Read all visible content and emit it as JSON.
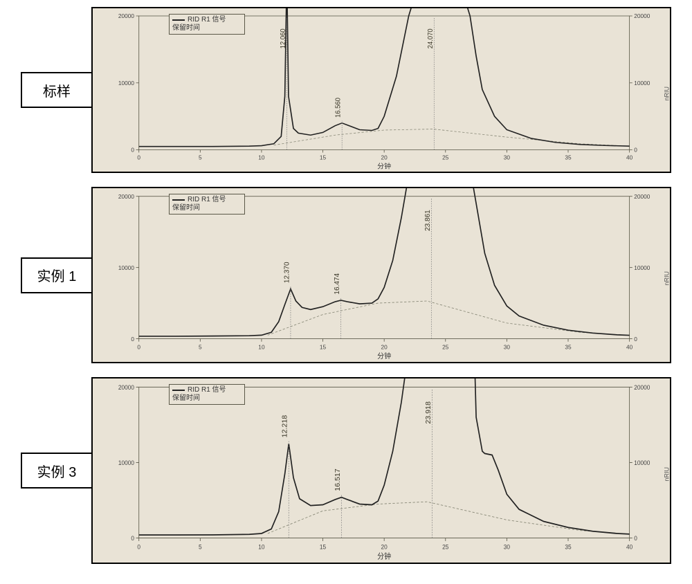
{
  "global": {
    "background_color": "#ffffff",
    "panel_bg": "#e9e3d6",
    "border_color": "#000000",
    "axis_color": "#5a5848",
    "line_color": "#222222",
    "baseline_color": "#888877",
    "xlim": [
      0,
      40
    ],
    "ylim": [
      0,
      20000
    ],
    "xticks": [
      0,
      5,
      10,
      15,
      20,
      25,
      30,
      35,
      40
    ],
    "yticks": [
      0,
      10000,
      20000
    ],
    "yticks_right": [
      0,
      10000,
      20000
    ],
    "xlabel": "分钟",
    "y_right_label": "nRIU",
    "legend_line1": "RID   R1 信号",
    "legend_line2": "保留时间",
    "tick_fontsize": 10,
    "label_fontsize": 12,
    "peak_label_fontsize": 12,
    "line_width": 2
  },
  "charts": [
    {
      "id": "chart-std",
      "panel_label": "标样",
      "peaks": [
        {
          "rt": 12.06,
          "label": "12.060"
        },
        {
          "rt": 16.56,
          "label": "16.560"
        },
        {
          "rt": 24.07,
          "label": "24.070"
        }
      ],
      "curve": [
        [
          0,
          500
        ],
        [
          3,
          500
        ],
        [
          6,
          500
        ],
        [
          9,
          550
        ],
        [
          10,
          620
        ],
        [
          11,
          900
        ],
        [
          11.6,
          2000
        ],
        [
          11.9,
          8000
        ],
        [
          12.06,
          26000
        ],
        [
          12.2,
          8000
        ],
        [
          12.6,
          3200
        ],
        [
          13,
          2500
        ],
        [
          14,
          2200
        ],
        [
          15,
          2600
        ],
        [
          16,
          3600
        ],
        [
          16.56,
          4000
        ],
        [
          17,
          3700
        ],
        [
          18,
          3000
        ],
        [
          19,
          2900
        ],
        [
          19.5,
          3200
        ],
        [
          20,
          5000
        ],
        [
          21,
          11000
        ],
        [
          22,
          20000
        ],
        [
          23,
          26000
        ],
        [
          24.07,
          27000
        ],
        [
          25,
          27000
        ],
        [
          26,
          26000
        ],
        [
          27,
          20000
        ],
        [
          27.5,
          14000
        ],
        [
          28,
          9000
        ],
        [
          29,
          5000
        ],
        [
          30,
          3000
        ],
        [
          32,
          1700
        ],
        [
          34,
          1100
        ],
        [
          36,
          800
        ],
        [
          38,
          650
        ],
        [
          40,
          550
        ]
      ],
      "baseline": [
        [
          11,
          700
        ],
        [
          16,
          2200
        ],
        [
          20,
          2950
        ],
        [
          24,
          3100
        ],
        [
          30,
          1900
        ],
        [
          36,
          900
        ],
        [
          40,
          550
        ]
      ],
      "height_class": "chart-box"
    },
    {
      "id": "chart-ex1",
      "panel_label": "实例 1",
      "peaks": [
        {
          "rt": 12.37,
          "label": "12.370"
        },
        {
          "rt": 16.474,
          "label": "16.474"
        },
        {
          "rt": 23.861,
          "label": "23.861"
        }
      ],
      "curve": [
        [
          0,
          350
        ],
        [
          3,
          350
        ],
        [
          6,
          380
        ],
        [
          9,
          420
        ],
        [
          10,
          500
        ],
        [
          10.8,
          900
        ],
        [
          11.4,
          2400
        ],
        [
          11.9,
          4800
        ],
        [
          12.37,
          7000
        ],
        [
          12.8,
          5300
        ],
        [
          13.3,
          4400
        ],
        [
          14,
          4100
        ],
        [
          15,
          4500
        ],
        [
          16,
          5200
        ],
        [
          16.47,
          5400
        ],
        [
          17,
          5200
        ],
        [
          18,
          4900
        ],
        [
          19,
          5000
        ],
        [
          19.5,
          5600
        ],
        [
          20,
          7200
        ],
        [
          20.7,
          11000
        ],
        [
          21.4,
          17000
        ],
        [
          22,
          23000
        ],
        [
          23,
          27000
        ],
        [
          23.86,
          27500
        ],
        [
          25,
          27500
        ],
        [
          26,
          27000
        ],
        [
          27,
          24000
        ],
        [
          27.6,
          18000
        ],
        [
          28.2,
          12000
        ],
        [
          29,
          7500
        ],
        [
          30,
          4600
        ],
        [
          31,
          3200
        ],
        [
          33,
          1900
        ],
        [
          35,
          1200
        ],
        [
          37,
          800
        ],
        [
          39,
          550
        ],
        [
          40,
          480
        ]
      ],
      "baseline": [
        [
          10.5,
          500
        ],
        [
          15,
          3400
        ],
        [
          19.5,
          5000
        ],
        [
          23.5,
          5300
        ],
        [
          30,
          2200
        ],
        [
          36,
          900
        ],
        [
          40,
          480
        ]
      ],
      "height_class": "chart-box chart-box-2nd"
    },
    {
      "id": "chart-ex3",
      "panel_label": "实例 3",
      "peaks": [
        {
          "rt": 12.218,
          "label": "12.218"
        },
        {
          "rt": 16.517,
          "label": "16.517"
        },
        {
          "rt": 23.918,
          "label": "23.918"
        }
      ],
      "curve": [
        [
          0,
          400
        ],
        [
          3,
          400
        ],
        [
          6,
          420
        ],
        [
          9,
          480
        ],
        [
          10,
          600
        ],
        [
          10.8,
          1200
        ],
        [
          11.4,
          3500
        ],
        [
          11.9,
          8500
        ],
        [
          12.22,
          12500
        ],
        [
          12.6,
          8000
        ],
        [
          13.1,
          5200
        ],
        [
          14,
          4300
        ],
        [
          15,
          4400
        ],
        [
          16,
          5100
        ],
        [
          16.52,
          5400
        ],
        [
          17,
          5100
        ],
        [
          18,
          4500
        ],
        [
          19,
          4400
        ],
        [
          19.5,
          4900
        ],
        [
          20,
          7000
        ],
        [
          20.7,
          11500
        ],
        [
          21.4,
          18000
        ],
        [
          22,
          25000
        ],
        [
          23,
          27000
        ],
        [
          23.92,
          27500
        ],
        [
          25,
          27500
        ],
        [
          26,
          27000
        ],
        [
          27,
          25500
        ],
        [
          27.4,
          22000
        ],
        [
          27.5,
          16000
        ],
        [
          28,
          11500
        ],
        [
          28.2,
          11200
        ],
        [
          28.8,
          11000
        ],
        [
          29.3,
          9000
        ],
        [
          30,
          5800
        ],
        [
          31,
          3800
        ],
        [
          33,
          2200
        ],
        [
          35,
          1400
        ],
        [
          37,
          900
        ],
        [
          39,
          600
        ],
        [
          40,
          520
        ]
      ],
      "baseline": [
        [
          10.5,
          600
        ],
        [
          15,
          3600
        ],
        [
          19.5,
          4500
        ],
        [
          23.5,
          4800
        ],
        [
          30,
          2400
        ],
        [
          36,
          1000
        ],
        [
          40,
          520
        ]
      ],
      "height_class": "chart-box chart-box-3rd"
    }
  ]
}
